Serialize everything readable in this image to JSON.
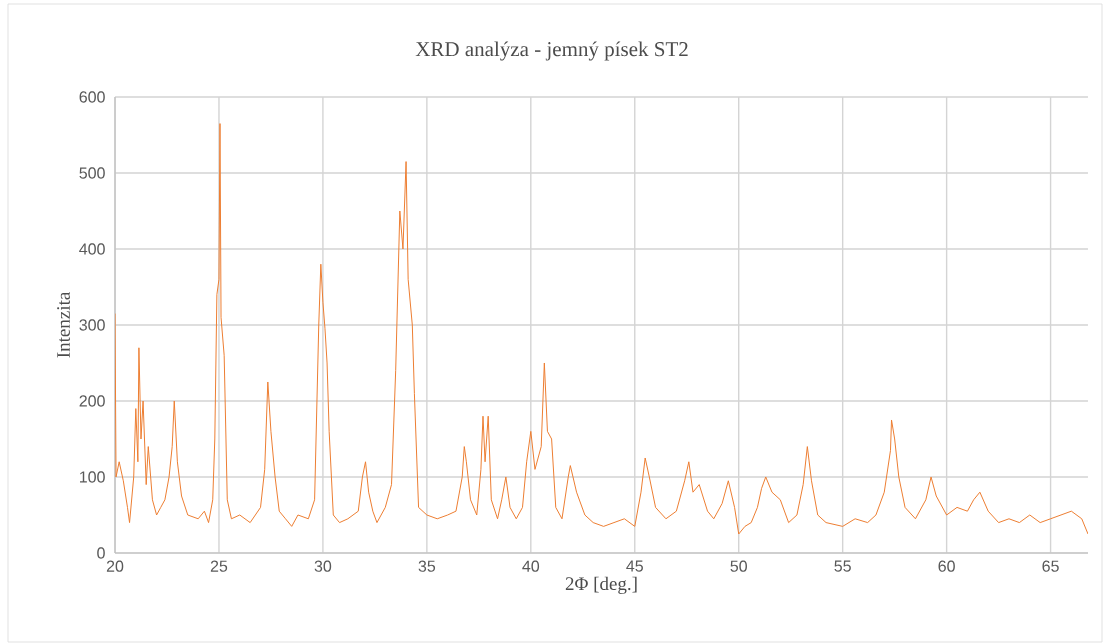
{
  "chart_data": {
    "type": "line",
    "title": "XRD analýza - jemný písek ST2",
    "xlabel": "2Φ [deg.]",
    "ylabel": "Intenzita",
    "xlim": [
      20,
      66.8
    ],
    "ylim": [
      0,
      600
    ],
    "xticks": [
      20,
      25,
      30,
      35,
      40,
      45,
      50,
      55,
      60,
      65
    ],
    "yticks": [
      0,
      100,
      200,
      300,
      400,
      500,
      600
    ],
    "grid": true,
    "series": [
      {
        "color": "#ed7d31",
        "x": [
          20.0,
          20.05,
          20.2,
          20.4,
          20.6,
          20.7,
          20.9,
          21.0,
          21.1,
          21.15,
          21.25,
          21.35,
          21.5,
          21.6,
          21.8,
          22.0,
          22.2,
          22.4,
          22.6,
          22.75,
          22.85,
          23.0,
          23.2,
          23.5,
          24.0,
          24.3,
          24.5,
          24.7,
          24.8,
          24.9,
          25.0,
          25.05,
          25.1,
          25.25,
          25.4,
          25.6,
          26.0,
          26.5,
          27.0,
          27.2,
          27.35,
          27.5,
          27.7,
          27.9,
          28.2,
          28.5,
          28.8,
          29.3,
          29.6,
          29.8,
          29.9,
          30.0,
          30.1,
          30.2,
          30.3,
          30.5,
          30.8,
          31.2,
          31.7,
          31.9,
          32.05,
          32.2,
          32.4,
          32.6,
          33.0,
          33.3,
          33.5,
          33.7,
          33.85,
          34.0,
          34.1,
          34.3,
          34.4,
          34.6,
          35.0,
          35.5,
          36.0,
          36.4,
          36.7,
          36.8,
          36.9,
          37.1,
          37.4,
          37.6,
          37.7,
          37.8,
          37.95,
          38.1,
          38.4,
          38.6,
          38.8,
          39.0,
          39.3,
          39.6,
          39.8,
          40.0,
          40.2,
          40.5,
          40.65,
          40.8,
          41.0,
          41.2,
          41.5,
          41.8,
          41.9,
          42.2,
          42.6,
          43.0,
          43.5,
          44.0,
          44.5,
          45.0,
          45.3,
          45.5,
          45.7,
          46.0,
          46.5,
          47.0,
          47.4,
          47.6,
          47.8,
          48.1,
          48.5,
          48.8,
          49.2,
          49.5,
          49.8,
          50.0,
          50.3,
          50.6,
          50.9,
          51.1,
          51.3,
          51.6,
          52.0,
          52.4,
          52.8,
          53.1,
          53.3,
          53.5,
          53.8,
          54.2,
          55.0,
          55.6,
          56.2,
          56.6,
          57.0,
          57.3,
          57.35,
          57.5,
          57.7,
          58.0,
          58.5,
          59.0,
          59.25,
          59.5,
          60.0,
          60.5,
          61.0,
          61.3,
          61.6,
          62.0,
          62.5,
          63.0,
          63.5,
          64.0,
          64.5,
          65.0,
          65.5,
          66.0,
          66.5,
          66.8
        ],
        "values": [
          315,
          100,
          120,
          95,
          60,
          40,
          100,
          190,
          120,
          270,
          150,
          200,
          90,
          140,
          70,
          50,
          60,
          70,
          100,
          140,
          200,
          120,
          75,
          50,
          45,
          55,
          40,
          70,
          150,
          340,
          360,
          565,
          310,
          260,
          70,
          45,
          50,
          40,
          60,
          110,
          225,
          160,
          100,
          55,
          45,
          35,
          50,
          45,
          70,
          300,
          380,
          330,
          295,
          250,
          160,
          50,
          40,
          45,
          55,
          100,
          120,
          80,
          55,
          40,
          60,
          90,
          240,
          450,
          400,
          515,
          360,
          300,
          210,
          60,
          50,
          45,
          50,
          55,
          100,
          140,
          120,
          70,
          50,
          110,
          180,
          120,
          180,
          70,
          45,
          70,
          100,
          60,
          45,
          60,
          120,
          160,
          110,
          140,
          250,
          160,
          150,
          60,
          45,
          100,
          115,
          80,
          50,
          40,
          35,
          40,
          45,
          35,
          80,
          125,
          100,
          60,
          45,
          55,
          95,
          120,
          80,
          90,
          55,
          45,
          65,
          95,
          60,
          25,
          35,
          40,
          60,
          85,
          100,
          80,
          70,
          40,
          50,
          90,
          140,
          95,
          50,
          40,
          35,
          45,
          40,
          50,
          80,
          135,
          175,
          150,
          100,
          60,
          45,
          70,
          100,
          75,
          50,
          60,
          55,
          70,
          80,
          55,
          40,
          45,
          40,
          50,
          40,
          45,
          50,
          55,
          45,
          25
        ]
      }
    ]
  }
}
